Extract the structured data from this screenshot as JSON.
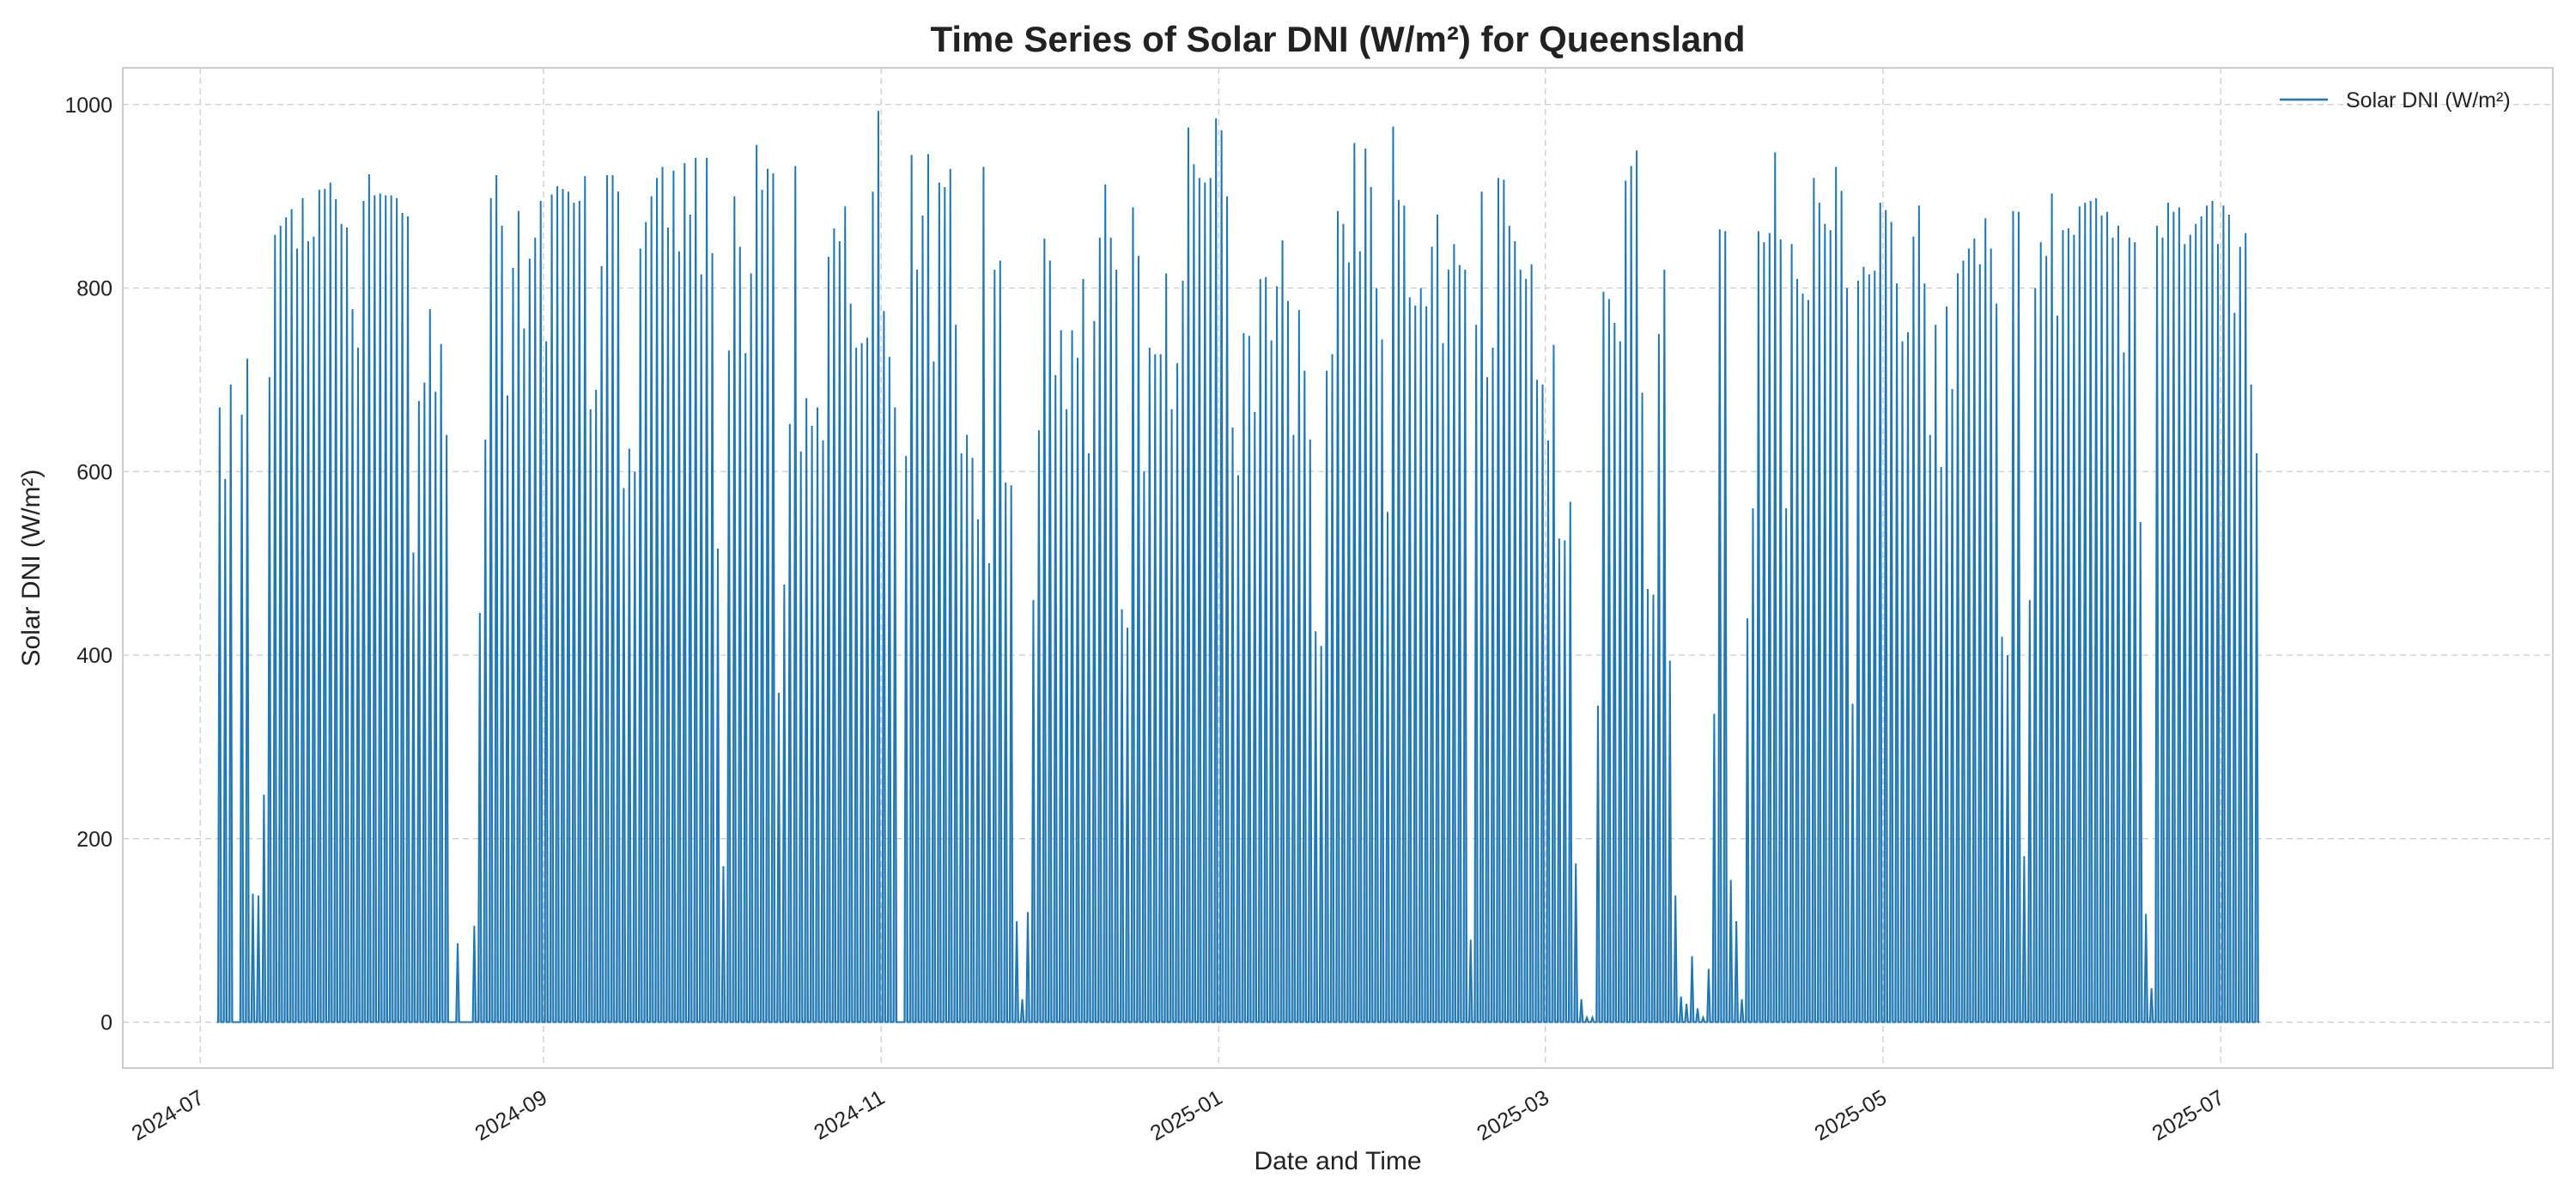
{
  "chart_data": {
    "type": "line",
    "title": "Time Series of Solar DNI (W/m²) for Queensland",
    "xlabel": "Date and Time",
    "ylabel": "Solar DNI (W/m²)",
    "x_tick_labels": [
      "2024-07",
      "2024-09",
      "2024-11",
      "2025-01",
      "2025-03",
      "2025-05",
      "2025-07"
    ],
    "x_tick_dates": [
      "2024-07-01",
      "2024-09-01",
      "2024-11-01",
      "2025-01-01",
      "2025-03-01",
      "2025-05-01",
      "2025-07-01"
    ],
    "y_ticks": [
      0,
      200,
      400,
      600,
      800,
      1000
    ],
    "xlim": [
      "2024-06-17",
      "2025-08-30"
    ],
    "ylim": [
      -50,
      1040
    ],
    "grid": true,
    "legend_position": "top-right",
    "series": [
      {
        "name": "Solar DNI (W/m²)",
        "color": "#1f77b4",
        "data_start": "2024-07-04",
        "data_end": "2025-07-25",
        "daily_peaks": [
          670,
          592,
          695,
          0,
          662,
          723,
          140,
          138,
          248,
          703,
          858,
          868,
          877,
          886,
          843,
          898,
          851,
          856,
          907,
          908,
          915,
          897,
          870,
          866,
          777,
          735,
          895,
          924,
          901,
          903,
          901,
          901,
          898,
          882,
          878,
          512,
          677,
          697,
          777,
          687,
          739,
          640,
          0,
          86,
          0,
          0,
          105,
          446,
          635,
          898,
          923,
          868,
          683,
          822,
          884,
          756,
          832,
          855,
          895,
          742,
          902,
          911,
          908,
          905,
          893,
          895,
          922,
          668,
          689,
          824,
          923,
          923,
          905,
          582,
          625,
          600,
          843,
          872,
          900,
          920,
          932,
          866,
          928,
          840,
          936,
          880,
          942,
          815,
          942,
          838,
          516,
          170,
          732,
          900,
          845,
          729,
          816,
          956,
          907,
          930,
          925,
          359,
          477,
          652,
          933,
          622,
          680,
          650,
          670,
          634,
          834,
          865,
          851,
          889,
          783,
          735,
          740,
          746,
          905,
          993,
          775,
          725,
          670,
          0,
          617,
          945,
          820,
          879,
          946,
          720,
          915,
          910,
          930,
          760,
          620,
          640,
          615,
          548,
          932,
          500,
          820,
          830,
          588,
          585,
          110,
          25,
          120,
          460,
          645,
          854,
          830,
          705,
          754,
          668,
          754,
          724,
          810,
          620,
          764,
          855,
          913,
          855,
          820,
          450,
          430,
          888,
          835,
          600,
          735,
          728,
          728,
          816,
          668,
          718,
          808,
          975,
          935,
          920,
          915,
          920,
          985,
          972,
          900,
          648,
          596,
          751,
          748,
          665,
          810,
          812,
          743,
          802,
          852,
          786,
          640,
          776,
          710,
          635,
          426,
          410,
          710,
          728,
          884,
          870,
          828,
          958,
          840,
          952,
          910,
          800,
          744,
          556,
          976,
          896,
          890,
          790,
          781,
          800,
          780,
          845,
          880,
          740,
          820,
          848,
          825,
          820,
          90,
          760,
          905,
          703,
          735,
          920,
          918,
          868,
          851,
          820,
          810,
          826,
          700,
          695,
          634,
          738,
          527,
          525,
          567,
          173,
          25,
          5,
          5,
          345,
          796,
          788,
          762,
          742,
          917,
          933,
          950,
          686,
          472,
          466,
          750,
          820,
          394,
          138,
          28,
          20,
          72,
          15,
          5,
          58,
          336,
          864,
          862,
          155,
          110,
          25,
          440,
          560,
          862,
          850,
          860,
          948,
          853,
          560,
          848,
          810,
          794,
          787,
          920,
          893,
          870,
          863,
          932,
          906,
          800,
          347,
          808,
          823,
          815,
          819,
          893,
          885,
          872,
          805,
          742,
          752,
          856,
          890,
          805,
          640,
          760,
          605,
          780,
          690,
          816,
          830,
          843,
          854,
          826,
          876,
          843,
          783,
          420,
          400,
          884,
          883,
          181,
          460,
          800,
          850,
          835,
          903,
          770,
          863,
          865,
          858,
          889,
          893,
          895,
          898,
          879,
          883,
          855,
          868,
          730,
          855,
          850,
          545,
          118,
          37,
          868,
          855,
          893,
          883,
          888,
          848,
          858,
          870,
          878,
          890,
          895,
          848,
          890,
          880,
          773,
          845,
          860,
          695,
          620
        ]
      }
    ]
  }
}
